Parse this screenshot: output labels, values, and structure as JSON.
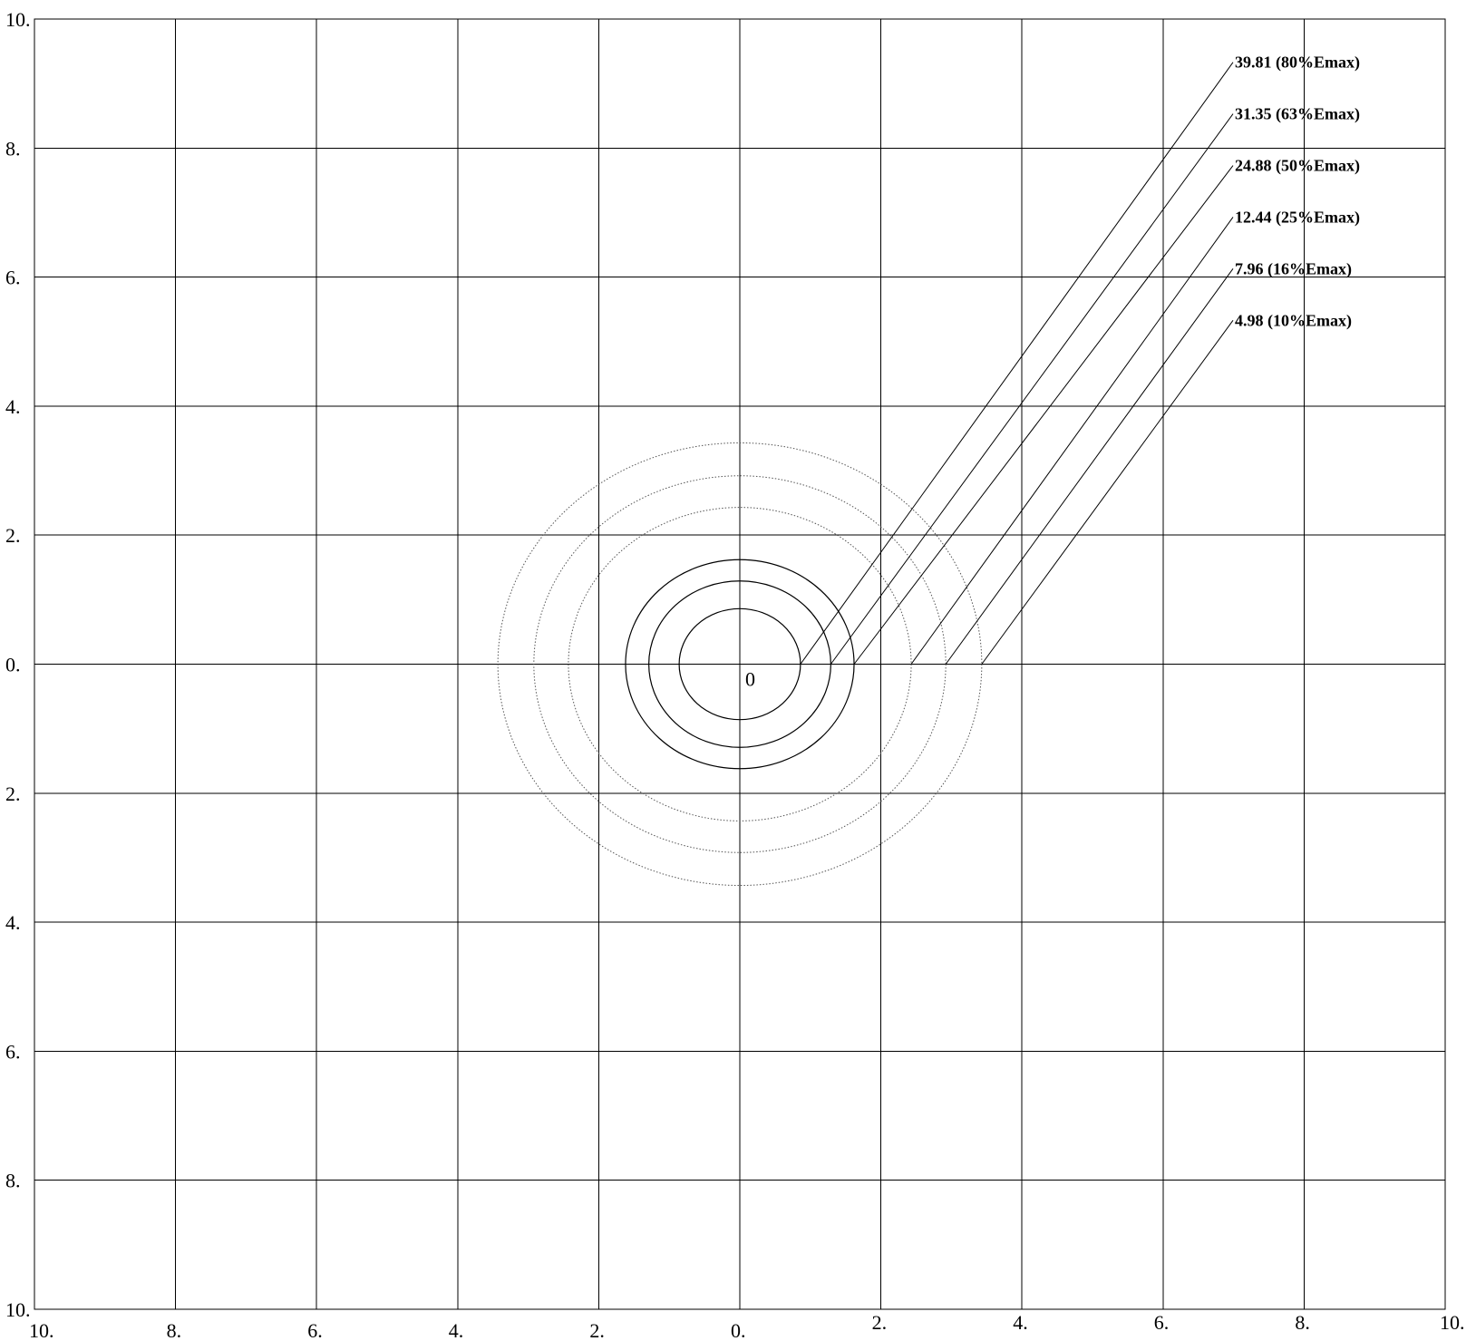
{
  "chart_data": {
    "type": "contour",
    "title": "",
    "xlabel": "",
    "ylabel": "",
    "xlim": [
      -10,
      10
    ],
    "ylim": [
      -10,
      10
    ],
    "grid": true,
    "x_ticks": [
      -10,
      -8,
      -6,
      -4,
      -2,
      0,
      2,
      4,
      6,
      8,
      10
    ],
    "y_ticks": [
      -10,
      -8,
      -6,
      -4,
      -2,
      0,
      2,
      4,
      6,
      8,
      10
    ],
    "x_tick_labels": [
      "10.",
      "8.",
      "6.",
      "4.",
      "2.",
      "0.",
      "2.",
      "4.",
      "6.",
      "8.",
      "10."
    ],
    "y_tick_labels": [
      "10.",
      "8.",
      "6.",
      "4.",
      "2.",
      "0.",
      "2.",
      "4.",
      "6.",
      "8.",
      "10."
    ],
    "origin_label": "0",
    "contours": [
      {
        "label": "39.81  (80%Emax)",
        "rx": 0.86,
        "ry": 0.86,
        "style": "solid",
        "label_y": 9.33
      },
      {
        "label": "31.35  (63%Emax)",
        "rx": 1.29,
        "ry": 1.29,
        "style": "solid",
        "label_y": 8.53
      },
      {
        "label": "24.88  (50%Emax)",
        "rx": 1.62,
        "ry": 1.62,
        "style": "solid",
        "label_y": 7.73
      },
      {
        "label": "12.44  (25%Emax)",
        "rx": 2.43,
        "ry": 2.43,
        "style": "dotted",
        "label_y": 6.93
      },
      {
        "label": "7.96  (16%Emax)",
        "rx": 2.92,
        "ry": 2.92,
        "style": "dotted",
        "label_y": 6.13
      },
      {
        "label": "4.98  (10%Emax)",
        "rx": 3.43,
        "ry": 3.43,
        "style": "dotted",
        "label_y": 5.33
      }
    ]
  }
}
